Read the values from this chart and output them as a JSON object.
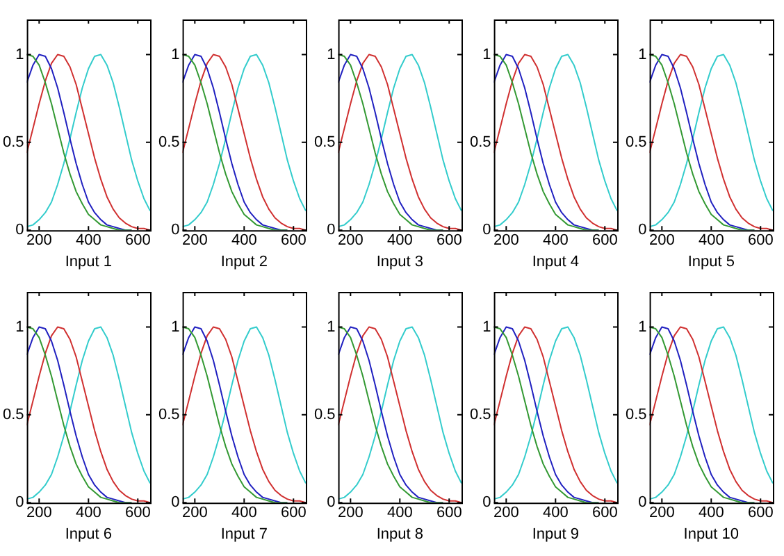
{
  "chart_data": [
    {
      "type": "line",
      "xlabel": "Input 1",
      "x": [
        150,
        175,
        200,
        225,
        250,
        275,
        300,
        325,
        350,
        375,
        400,
        425,
        450,
        475,
        500,
        525,
        550,
        575,
        600,
        625,
        650
      ],
      "xlim": [
        150,
        650
      ],
      "xticks": [
        200,
        400,
        600
      ],
      "ylim": [
        0,
        1.2
      ],
      "yticks": [
        0,
        0.5,
        1
      ],
      "grid": false,
      "legend": false,
      "marker": "none",
      "series": [
        {
          "color": "#339933",
          "values": [
            1,
            0.99,
            0.94,
            0.84,
            0.72,
            0.58,
            0.44,
            0.32,
            0.22,
            0.15,
            0.09,
            0.06,
            0.03,
            0.02,
            0.01,
            0,
            0,
            0,
            null,
            null,
            null
          ]
        },
        {
          "color": "#2020c0",
          "values": [
            0.84,
            0.94,
            1,
            0.99,
            0.92,
            0.81,
            0.67,
            0.52,
            0.38,
            0.26,
            0.16,
            0.1,
            0.06,
            0.03,
            0.02,
            0.01,
            0,
            0,
            null,
            null,
            null
          ]
        },
        {
          "color": "#d03030",
          "values": [
            0.44,
            0.58,
            0.72,
            0.85,
            0.95,
            1,
            0.99,
            0.93,
            0.83,
            0.69,
            0.55,
            0.41,
            0.29,
            0.19,
            0.12,
            0.07,
            0.04,
            0.02,
            0.01,
            0.01,
            0
          ]
        },
        {
          "color": "#33cccc",
          "values": [
            0.02,
            0.03,
            0.06,
            0.1,
            0.16,
            0.26,
            0.38,
            0.52,
            0.67,
            0.81,
            0.92,
            0.99,
            1,
            0.94,
            0.84,
            0.7,
            0.55,
            0.4,
            0.28,
            0.18,
            0.11
          ]
        }
      ]
    },
    {
      "type": "line",
      "xlabel": "Input 2",
      "x": [
        150,
        175,
        200,
        225,
        250,
        275,
        300,
        325,
        350,
        375,
        400,
        425,
        450,
        475,
        500,
        525,
        550,
        575,
        600,
        625,
        650
      ],
      "xlim": [
        150,
        650
      ],
      "xticks": [
        200,
        400,
        600
      ],
      "ylim": [
        0,
        1.2
      ],
      "yticks": [
        0,
        0.5,
        1
      ],
      "grid": false,
      "legend": false,
      "marker": "none",
      "series": [
        {
          "color": "#339933",
          "values": [
            1,
            0.99,
            0.94,
            0.84,
            0.72,
            0.58,
            0.44,
            0.32,
            0.22,
            0.15,
            0.09,
            0.06,
            0.03,
            0.02,
            0.01,
            0,
            0,
            0,
            null,
            null,
            null
          ]
        },
        {
          "color": "#2020c0",
          "values": [
            0.84,
            0.94,
            1,
            0.99,
            0.92,
            0.81,
            0.67,
            0.52,
            0.38,
            0.26,
            0.16,
            0.1,
            0.06,
            0.03,
            0.02,
            0.01,
            0,
            0,
            null,
            null,
            null
          ]
        },
        {
          "color": "#d03030",
          "values": [
            0.44,
            0.58,
            0.72,
            0.85,
            0.95,
            1,
            0.99,
            0.93,
            0.83,
            0.69,
            0.55,
            0.41,
            0.29,
            0.19,
            0.12,
            0.07,
            0.04,
            0.02,
            0.01,
            0.01,
            0
          ]
        },
        {
          "color": "#33cccc",
          "values": [
            0.02,
            0.03,
            0.06,
            0.1,
            0.16,
            0.26,
            0.38,
            0.52,
            0.67,
            0.81,
            0.92,
            0.99,
            1,
            0.94,
            0.84,
            0.7,
            0.55,
            0.4,
            0.28,
            0.18,
            0.11
          ]
        }
      ]
    },
    {
      "type": "line",
      "xlabel": "Input 3",
      "x": [
        150,
        175,
        200,
        225,
        250,
        275,
        300,
        325,
        350,
        375,
        400,
        425,
        450,
        475,
        500,
        525,
        550,
        575,
        600,
        625,
        650
      ],
      "xlim": [
        150,
        650
      ],
      "xticks": [
        200,
        400,
        600
      ],
      "ylim": [
        0,
        1.2
      ],
      "yticks": [
        0,
        0.5,
        1
      ],
      "grid": false,
      "legend": false,
      "marker": "none",
      "series": [
        {
          "color": "#339933",
          "values": [
            1,
            0.99,
            0.94,
            0.84,
            0.72,
            0.58,
            0.44,
            0.32,
            0.22,
            0.15,
            0.09,
            0.06,
            0.03,
            0.02,
            0.01,
            0,
            0,
            0,
            null,
            null,
            null
          ]
        },
        {
          "color": "#2020c0",
          "values": [
            0.84,
            0.94,
            1,
            0.99,
            0.92,
            0.81,
            0.67,
            0.52,
            0.38,
            0.26,
            0.16,
            0.1,
            0.06,
            0.03,
            0.02,
            0.01,
            0,
            0,
            null,
            null,
            null
          ]
        },
        {
          "color": "#d03030",
          "values": [
            0.44,
            0.58,
            0.72,
            0.85,
            0.95,
            1,
            0.99,
            0.93,
            0.83,
            0.69,
            0.55,
            0.41,
            0.29,
            0.19,
            0.12,
            0.07,
            0.04,
            0.02,
            0.01,
            0.01,
            0
          ]
        },
        {
          "color": "#33cccc",
          "values": [
            0.02,
            0.03,
            0.06,
            0.1,
            0.16,
            0.26,
            0.38,
            0.52,
            0.67,
            0.81,
            0.92,
            0.99,
            1,
            0.94,
            0.84,
            0.7,
            0.55,
            0.4,
            0.28,
            0.18,
            0.11
          ]
        }
      ]
    },
    {
      "type": "line",
      "xlabel": "Input 4",
      "x": [
        150,
        175,
        200,
        225,
        250,
        275,
        300,
        325,
        350,
        375,
        400,
        425,
        450,
        475,
        500,
        525,
        550,
        575,
        600,
        625,
        650
      ],
      "xlim": [
        150,
        650
      ],
      "xticks": [
        200,
        400,
        600
      ],
      "ylim": [
        0,
        1.2
      ],
      "yticks": [
        0,
        0.5,
        1
      ],
      "grid": false,
      "legend": false,
      "marker": "none",
      "series": [
        {
          "color": "#339933",
          "values": [
            1,
            0.99,
            0.94,
            0.84,
            0.72,
            0.58,
            0.44,
            0.32,
            0.22,
            0.15,
            0.09,
            0.06,
            0.03,
            0.02,
            0.01,
            0,
            0,
            0,
            null,
            null,
            null
          ]
        },
        {
          "color": "#2020c0",
          "values": [
            0.84,
            0.94,
            1,
            0.99,
            0.92,
            0.81,
            0.67,
            0.52,
            0.38,
            0.26,
            0.16,
            0.1,
            0.06,
            0.03,
            0.02,
            0.01,
            0,
            0,
            null,
            null,
            null
          ]
        },
        {
          "color": "#d03030",
          "values": [
            0.44,
            0.58,
            0.72,
            0.85,
            0.95,
            1,
            0.99,
            0.93,
            0.83,
            0.69,
            0.55,
            0.41,
            0.29,
            0.19,
            0.12,
            0.07,
            0.04,
            0.02,
            0.01,
            0.01,
            0
          ]
        },
        {
          "color": "#33cccc",
          "values": [
            0.02,
            0.03,
            0.06,
            0.1,
            0.16,
            0.26,
            0.38,
            0.52,
            0.67,
            0.81,
            0.92,
            0.99,
            1,
            0.94,
            0.84,
            0.7,
            0.55,
            0.4,
            0.28,
            0.18,
            0.11
          ]
        }
      ]
    },
    {
      "type": "line",
      "xlabel": "Input 5",
      "x": [
        150,
        175,
        200,
        225,
        250,
        275,
        300,
        325,
        350,
        375,
        400,
        425,
        450,
        475,
        500,
        525,
        550,
        575,
        600,
        625,
        650
      ],
      "xlim": [
        150,
        650
      ],
      "xticks": [
        200,
        400,
        600
      ],
      "ylim": [
        0,
        1.2
      ],
      "yticks": [
        0,
        0.5,
        1
      ],
      "grid": false,
      "legend": false,
      "marker": "none",
      "series": [
        {
          "color": "#339933",
          "values": [
            1,
            0.99,
            0.94,
            0.84,
            0.72,
            0.58,
            0.44,
            0.32,
            0.22,
            0.15,
            0.09,
            0.06,
            0.03,
            0.02,
            0.01,
            0,
            0,
            0,
            null,
            null,
            null
          ]
        },
        {
          "color": "#2020c0",
          "values": [
            0.84,
            0.94,
            1,
            0.99,
            0.92,
            0.81,
            0.67,
            0.52,
            0.38,
            0.26,
            0.16,
            0.1,
            0.06,
            0.03,
            0.02,
            0.01,
            0,
            0,
            null,
            null,
            null
          ]
        },
        {
          "color": "#d03030",
          "values": [
            0.44,
            0.58,
            0.72,
            0.85,
            0.95,
            1,
            0.99,
            0.93,
            0.83,
            0.69,
            0.55,
            0.41,
            0.29,
            0.19,
            0.12,
            0.07,
            0.04,
            0.02,
            0.01,
            0.01,
            0
          ]
        },
        {
          "color": "#33cccc",
          "values": [
            0.02,
            0.03,
            0.06,
            0.1,
            0.16,
            0.26,
            0.38,
            0.52,
            0.67,
            0.81,
            0.92,
            0.99,
            1,
            0.94,
            0.84,
            0.7,
            0.55,
            0.4,
            0.28,
            0.18,
            0.11
          ]
        }
      ]
    },
    {
      "type": "line",
      "xlabel": "Input 6",
      "x": [
        150,
        175,
        200,
        225,
        250,
        275,
        300,
        325,
        350,
        375,
        400,
        425,
        450,
        475,
        500,
        525,
        550,
        575,
        600,
        625,
        650
      ],
      "xlim": [
        150,
        650
      ],
      "xticks": [
        200,
        400,
        600
      ],
      "ylim": [
        0,
        1.2
      ],
      "yticks": [
        0,
        0.5,
        1
      ],
      "grid": false,
      "legend": false,
      "marker": "none",
      "series": [
        {
          "color": "#339933",
          "values": [
            1,
            0.99,
            0.94,
            0.84,
            0.72,
            0.58,
            0.44,
            0.32,
            0.22,
            0.15,
            0.09,
            0.06,
            0.03,
            0.02,
            0.01,
            0,
            0,
            0,
            null,
            null,
            null
          ]
        },
        {
          "color": "#2020c0",
          "values": [
            0.84,
            0.94,
            1,
            0.99,
            0.92,
            0.81,
            0.67,
            0.52,
            0.38,
            0.26,
            0.16,
            0.1,
            0.06,
            0.03,
            0.02,
            0.01,
            0,
            0,
            null,
            null,
            null
          ]
        },
        {
          "color": "#d03030",
          "values": [
            0.44,
            0.58,
            0.72,
            0.85,
            0.95,
            1,
            0.99,
            0.93,
            0.83,
            0.69,
            0.55,
            0.41,
            0.29,
            0.19,
            0.12,
            0.07,
            0.04,
            0.02,
            0.01,
            0.01,
            0
          ]
        },
        {
          "color": "#33cccc",
          "values": [
            0.02,
            0.03,
            0.06,
            0.1,
            0.16,
            0.26,
            0.38,
            0.52,
            0.67,
            0.81,
            0.92,
            0.99,
            1,
            0.94,
            0.84,
            0.7,
            0.55,
            0.4,
            0.28,
            0.18,
            0.11
          ]
        }
      ]
    },
    {
      "type": "line",
      "xlabel": "Input 7",
      "x": [
        150,
        175,
        200,
        225,
        250,
        275,
        300,
        325,
        350,
        375,
        400,
        425,
        450,
        475,
        500,
        525,
        550,
        575,
        600,
        625,
        650
      ],
      "xlim": [
        150,
        650
      ],
      "xticks": [
        200,
        400,
        600
      ],
      "ylim": [
        0,
        1.2
      ],
      "yticks": [
        0,
        0.5,
        1
      ],
      "grid": false,
      "legend": false,
      "marker": "none",
      "series": [
        {
          "color": "#339933",
          "values": [
            1,
            0.99,
            0.94,
            0.84,
            0.72,
            0.58,
            0.44,
            0.32,
            0.22,
            0.15,
            0.09,
            0.06,
            0.03,
            0.02,
            0.01,
            0,
            0,
            0,
            null,
            null,
            null
          ]
        },
        {
          "color": "#2020c0",
          "values": [
            0.84,
            0.94,
            1,
            0.99,
            0.92,
            0.81,
            0.67,
            0.52,
            0.38,
            0.26,
            0.16,
            0.1,
            0.06,
            0.03,
            0.02,
            0.01,
            0,
            0,
            null,
            null,
            null
          ]
        },
        {
          "color": "#d03030",
          "values": [
            0.44,
            0.58,
            0.72,
            0.85,
            0.95,
            1,
            0.99,
            0.93,
            0.83,
            0.69,
            0.55,
            0.41,
            0.29,
            0.19,
            0.12,
            0.07,
            0.04,
            0.02,
            0.01,
            0.01,
            0
          ]
        },
        {
          "color": "#33cccc",
          "values": [
            0.02,
            0.03,
            0.06,
            0.1,
            0.16,
            0.26,
            0.38,
            0.52,
            0.67,
            0.81,
            0.92,
            0.99,
            1,
            0.94,
            0.84,
            0.7,
            0.55,
            0.4,
            0.28,
            0.18,
            0.11
          ]
        }
      ]
    },
    {
      "type": "line",
      "xlabel": "Input 8",
      "x": [
        150,
        175,
        200,
        225,
        250,
        275,
        300,
        325,
        350,
        375,
        400,
        425,
        450,
        475,
        500,
        525,
        550,
        575,
        600,
        625,
        650
      ],
      "xlim": [
        150,
        650
      ],
      "xticks": [
        200,
        400,
        600
      ],
      "ylim": [
        0,
        1.2
      ],
      "yticks": [
        0,
        0.5,
        1
      ],
      "grid": false,
      "legend": false,
      "marker": "none",
      "series": [
        {
          "color": "#339933",
          "values": [
            1,
            0.99,
            0.94,
            0.84,
            0.72,
            0.58,
            0.44,
            0.32,
            0.22,
            0.15,
            0.09,
            0.06,
            0.03,
            0.02,
            0.01,
            0,
            0,
            0,
            null,
            null,
            null
          ]
        },
        {
          "color": "#2020c0",
          "values": [
            0.84,
            0.94,
            1,
            0.99,
            0.92,
            0.81,
            0.67,
            0.52,
            0.38,
            0.26,
            0.16,
            0.1,
            0.06,
            0.03,
            0.02,
            0.01,
            0,
            0,
            null,
            null,
            null
          ]
        },
        {
          "color": "#d03030",
          "values": [
            0.44,
            0.58,
            0.72,
            0.85,
            0.95,
            1,
            0.99,
            0.93,
            0.83,
            0.69,
            0.55,
            0.41,
            0.29,
            0.19,
            0.12,
            0.07,
            0.04,
            0.02,
            0.01,
            0.01,
            0
          ]
        },
        {
          "color": "#33cccc",
          "values": [
            0.02,
            0.03,
            0.06,
            0.1,
            0.16,
            0.26,
            0.38,
            0.52,
            0.67,
            0.81,
            0.92,
            0.99,
            1,
            0.94,
            0.84,
            0.7,
            0.55,
            0.4,
            0.28,
            0.18,
            0.11
          ]
        }
      ]
    },
    {
      "type": "line",
      "xlabel": "Input 9",
      "x": [
        150,
        175,
        200,
        225,
        250,
        275,
        300,
        325,
        350,
        375,
        400,
        425,
        450,
        475,
        500,
        525,
        550,
        575,
        600,
        625,
        650
      ],
      "xlim": [
        150,
        650
      ],
      "xticks": [
        200,
        400,
        600
      ],
      "ylim": [
        0,
        1.2
      ],
      "yticks": [
        0,
        0.5,
        1
      ],
      "grid": false,
      "legend": false,
      "marker": "none",
      "series": [
        {
          "color": "#339933",
          "values": [
            1,
            0.99,
            0.94,
            0.84,
            0.72,
            0.58,
            0.44,
            0.32,
            0.22,
            0.15,
            0.09,
            0.06,
            0.03,
            0.02,
            0.01,
            0,
            0,
            0,
            null,
            null,
            null
          ]
        },
        {
          "color": "#2020c0",
          "values": [
            0.84,
            0.94,
            1,
            0.99,
            0.92,
            0.81,
            0.67,
            0.52,
            0.38,
            0.26,
            0.16,
            0.1,
            0.06,
            0.03,
            0.02,
            0.01,
            0,
            0,
            null,
            null,
            null
          ]
        },
        {
          "color": "#d03030",
          "values": [
            0.44,
            0.58,
            0.72,
            0.85,
            0.95,
            1,
            0.99,
            0.93,
            0.83,
            0.69,
            0.55,
            0.41,
            0.29,
            0.19,
            0.12,
            0.07,
            0.04,
            0.02,
            0.01,
            0.01,
            0
          ]
        },
        {
          "color": "#33cccc",
          "values": [
            0.02,
            0.03,
            0.06,
            0.1,
            0.16,
            0.26,
            0.38,
            0.52,
            0.67,
            0.81,
            0.92,
            0.99,
            1,
            0.94,
            0.84,
            0.7,
            0.55,
            0.4,
            0.28,
            0.18,
            0.11
          ]
        }
      ]
    },
    {
      "type": "line",
      "xlabel": "Input 10",
      "x": [
        150,
        175,
        200,
        225,
        250,
        275,
        300,
        325,
        350,
        375,
        400,
        425,
        450,
        475,
        500,
        525,
        550,
        575,
        600,
        625,
        650
      ],
      "xlim": [
        150,
        650
      ],
      "xticks": [
        200,
        400,
        600
      ],
      "ylim": [
        0,
        1.2
      ],
      "yticks": [
        0,
        0.5,
        1
      ],
      "grid": false,
      "legend": false,
      "marker": "none",
      "series": [
        {
          "color": "#339933",
          "values": [
            1,
            0.99,
            0.94,
            0.84,
            0.72,
            0.58,
            0.44,
            0.32,
            0.22,
            0.15,
            0.09,
            0.06,
            0.03,
            0.02,
            0.01,
            0,
            0,
            0,
            null,
            null,
            null
          ]
        },
        {
          "color": "#2020c0",
          "values": [
            0.84,
            0.94,
            1,
            0.99,
            0.92,
            0.81,
            0.67,
            0.52,
            0.38,
            0.26,
            0.16,
            0.1,
            0.06,
            0.03,
            0.02,
            0.01,
            0,
            0,
            null,
            null,
            null
          ]
        },
        {
          "color": "#d03030",
          "values": [
            0.44,
            0.58,
            0.72,
            0.85,
            0.95,
            1,
            0.99,
            0.93,
            0.83,
            0.69,
            0.55,
            0.41,
            0.29,
            0.19,
            0.12,
            0.07,
            0.04,
            0.02,
            0.01,
            0.01,
            0
          ]
        },
        {
          "color": "#33cccc",
          "values": [
            0.02,
            0.03,
            0.06,
            0.1,
            0.16,
            0.26,
            0.38,
            0.52,
            0.67,
            0.81,
            0.92,
            0.99,
            1,
            0.94,
            0.84,
            0.7,
            0.55,
            0.4,
            0.28,
            0.18,
            0.11
          ]
        }
      ]
    }
  ]
}
